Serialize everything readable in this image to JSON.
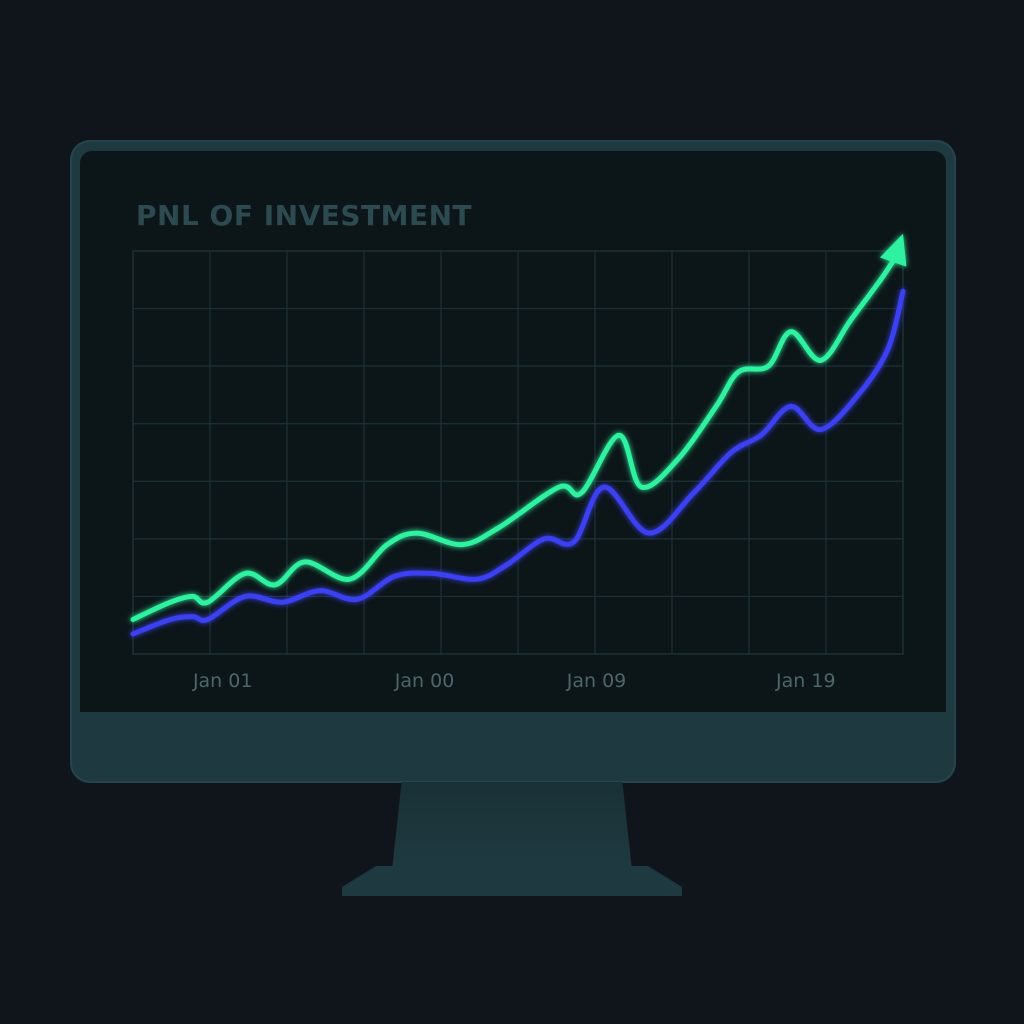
{
  "colors": {
    "background": "#10151c",
    "bezel": "#1e3a40",
    "screen": "#0c1518",
    "grid": "#1d3236",
    "title": "#2c4a50",
    "tick_label": "#4c666a",
    "series_green": "#2ef2a0",
    "series_blue": "#3b3ff0"
  },
  "chart_data": {
    "type": "line",
    "title": "PNL OF INVESTMENT",
    "xlabel": "",
    "ylabel": "",
    "x_tick_labels": [
      {
        "label": "Jan 01",
        "x": 1.2
      },
      {
        "label": "Jan 00",
        "x": 3.9
      },
      {
        "label": "Jan 09",
        "x": 6.2
      },
      {
        "label": "Jan 19",
        "x": 9.0
      }
    ],
    "xlim": [
      0,
      10.3
    ],
    "ylim": [
      0,
      7
    ],
    "grid": true,
    "legend": "none",
    "end_arrow_series": 0,
    "series": [
      {
        "color": "#2ef2a0",
        "points": [
          [
            0,
            0.6
          ],
          [
            0.5,
            0.9
          ],
          [
            0.8,
            1.0
          ],
          [
            1.0,
            0.9
          ],
          [
            1.5,
            1.4
          ],
          [
            1.9,
            1.2
          ],
          [
            2.3,
            1.6
          ],
          [
            2.9,
            1.3
          ],
          [
            3.4,
            1.9
          ],
          [
            3.8,
            2.1
          ],
          [
            4.4,
            1.9
          ],
          [
            4.9,
            2.2
          ],
          [
            5.7,
            2.9
          ],
          [
            6.0,
            2.8
          ],
          [
            6.5,
            3.8
          ],
          [
            6.8,
            2.9
          ],
          [
            7.3,
            3.4
          ],
          [
            7.8,
            4.3
          ],
          [
            8.1,
            4.9
          ],
          [
            8.5,
            5.0
          ],
          [
            8.8,
            5.6
          ],
          [
            9.2,
            5.1
          ],
          [
            9.6,
            5.8
          ],
          [
            10.0,
            6.5
          ],
          [
            10.3,
            7.3
          ]
        ]
      },
      {
        "color": "#3b3ff0",
        "points": [
          [
            0,
            0.35
          ],
          [
            0.5,
            0.6
          ],
          [
            0.8,
            0.65
          ],
          [
            1.0,
            0.6
          ],
          [
            1.5,
            1.0
          ],
          [
            2.0,
            0.9
          ],
          [
            2.5,
            1.1
          ],
          [
            3.0,
            0.95
          ],
          [
            3.5,
            1.35
          ],
          [
            4.0,
            1.4
          ],
          [
            4.6,
            1.3
          ],
          [
            5.0,
            1.55
          ],
          [
            5.5,
            2.0
          ],
          [
            5.9,
            1.95
          ],
          [
            6.3,
            2.9
          ],
          [
            6.9,
            2.1
          ],
          [
            7.5,
            2.8
          ],
          [
            8.0,
            3.5
          ],
          [
            8.4,
            3.8
          ],
          [
            8.8,
            4.3
          ],
          [
            9.2,
            3.9
          ],
          [
            9.7,
            4.5
          ],
          [
            10.1,
            5.3
          ],
          [
            10.3,
            6.3
          ]
        ]
      }
    ]
  }
}
